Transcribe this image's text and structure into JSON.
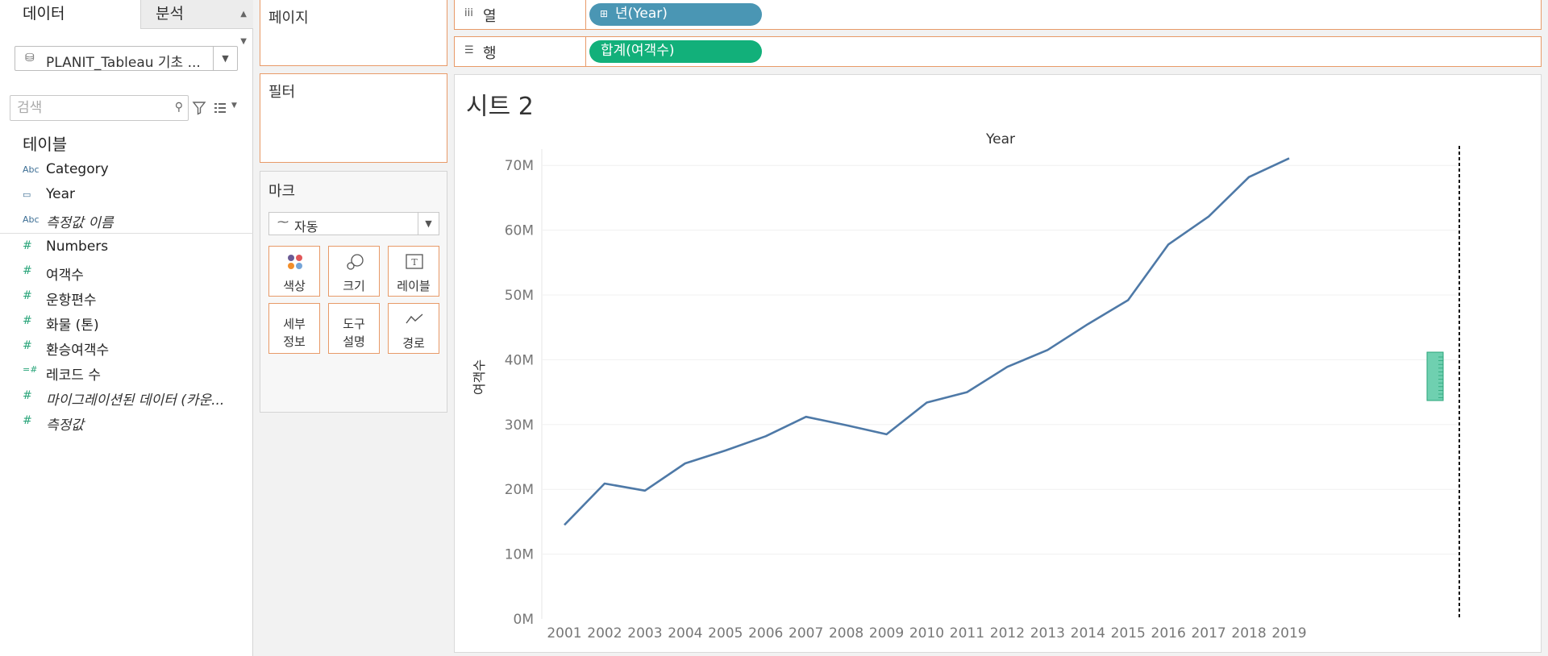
{
  "data_pane": {
    "tabs": {
      "data": "데이터",
      "analysis": "분석"
    },
    "datasource": "PLANIT_Tableau 기초 ...",
    "search_placeholder": "검색",
    "tables_heading": "테이블",
    "dimensions": [
      {
        "type": "Abc",
        "label": "Category",
        "italic": false
      },
      {
        "type": "date",
        "label": "Year",
        "italic": false
      },
      {
        "type": "Abc",
        "label": "측정값 이름",
        "italic": true
      }
    ],
    "measures": [
      {
        "type": "#",
        "label": "Numbers",
        "italic": false
      },
      {
        "type": "#",
        "label": "여객수",
        "italic": false
      },
      {
        "type": "#",
        "label": "운항편수",
        "italic": false
      },
      {
        "type": "#",
        "label": "화물 (톤)",
        "italic": false
      },
      {
        "type": "#",
        "label": "환승여객수",
        "italic": false
      },
      {
        "type": "=#",
        "label": "레코드 수",
        "italic": false
      },
      {
        "type": "#",
        "label": "마이그레이션된 데이터 (카운...",
        "italic": true
      },
      {
        "type": "#",
        "label": "측정값",
        "italic": true
      }
    ]
  },
  "cards": {
    "pages": "페이지",
    "filters": "필터",
    "marks": {
      "title": "마크",
      "mark_type": "자동",
      "buttons": {
        "color": "색상",
        "size": "크기",
        "label": "레이블",
        "detail_1": "세부",
        "detail_2": "정보",
        "tooltip_1": "도구",
        "tooltip_2": "설명",
        "path": "경로"
      }
    }
  },
  "shelves": {
    "columns": {
      "label": "열",
      "pill": "년(Year)"
    },
    "rows": {
      "label": "행",
      "pill": "합계(여객수)"
    }
  },
  "sheet": {
    "title": "시트 2"
  },
  "colors": {
    "line": "#4e79a7",
    "column_pill": "#4a96b4",
    "row_pill": "#12b07a",
    "shelf_border": "#e89a68"
  },
  "chart_data": {
    "type": "line",
    "title": "",
    "header": "Year",
    "ylabel": "여객수",
    "x": [
      "2001",
      "2002",
      "2003",
      "2004",
      "2005",
      "2006",
      "2007",
      "2008",
      "2009",
      "2010",
      "2011",
      "2012",
      "2013",
      "2014",
      "2015",
      "2016",
      "2017",
      "2018",
      "2019"
    ],
    "ylim": [
      0,
      75000000
    ],
    "yticks": [
      0,
      10000000,
      20000000,
      30000000,
      40000000,
      50000000,
      60000000,
      70000000
    ],
    "ytick_labels": [
      "0M",
      "10M",
      "20M",
      "30M",
      "40M",
      "50M",
      "60M",
      "70M"
    ],
    "series": [
      {
        "values": [
          14500000,
          20900000,
          19800000,
          24000000,
          26000000,
          28200000,
          31200000,
          29900000,
          28500000,
          33400000,
          35000000,
          38900000,
          41500000,
          45500000,
          49200000,
          57800000,
          62100000,
          68200000,
          71100000
        ]
      }
    ],
    "grid": true
  }
}
